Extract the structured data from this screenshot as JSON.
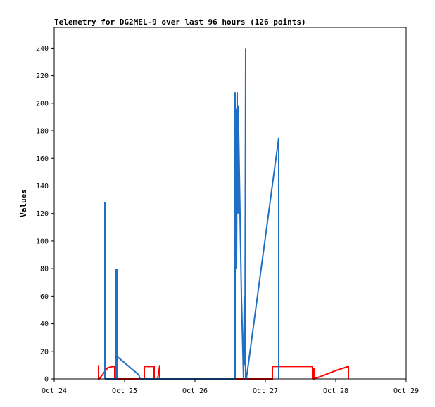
{
  "chart_data": {
    "type": "line",
    "title": "Telemetry for DG2MEL-9 over last 96 hours (126 points)",
    "xlabel": "",
    "ylabel": "Values",
    "x_unit": "days since Oct 24 00:00",
    "xlim": [
      0,
      5
    ],
    "ylim": [
      0,
      255
    ],
    "yticks": [
      0,
      20,
      40,
      60,
      80,
      100,
      120,
      140,
      160,
      180,
      200,
      220,
      240
    ],
    "xticks": [
      {
        "value": 0,
        "label": "Oct 24"
      },
      {
        "value": 1,
        "label": "Oct 25"
      },
      {
        "value": 2,
        "label": "Oct 26"
      },
      {
        "value": 3,
        "label": "Oct 27"
      },
      {
        "value": 4,
        "label": "Oct 28"
      },
      {
        "value": 5,
        "label": "Oct 29"
      }
    ],
    "grid": false,
    "legend": false,
    "series": [
      {
        "color": "#ff0000",
        "x": [
          0.63,
          0.63,
          0.64,
          0.7,
          0.76,
          0.83,
          0.86,
          0.86,
          1.0,
          1.1,
          1.2,
          1.28,
          1.28,
          1.4,
          1.42,
          1.42,
          1.47,
          1.5,
          1.5,
          1.54,
          1.6,
          2.0,
          2.5,
          3.0,
          3.1,
          3.1,
          3.3,
          3.6,
          3.67,
          3.67,
          3.69,
          3.69,
          3.8,
          4.0,
          4.18,
          4.18
        ],
        "y": [
          10,
          0,
          0,
          4,
          8,
          9,
          9,
          0,
          0,
          0,
          0,
          0,
          9,
          9,
          9,
          0,
          0,
          10,
          0,
          0,
          0,
          0,
          0,
          0,
          0,
          9,
          9,
          9,
          9,
          0,
          8,
          0,
          2,
          6,
          9,
          0
        ]
      },
      {
        "color": "#1f6fc5",
        "x": [
          0.72,
          0.72,
          0.73,
          0.88,
          0.88,
          0.89,
          0.89,
          0.9,
          1.2,
          1.22,
          1.6,
          2.0,
          2.5,
          2.57,
          2.57,
          2.58,
          2.58,
          2.59,
          2.6,
          2.6,
          2.61,
          2.61,
          2.62,
          2.66,
          2.69,
          2.7,
          2.71,
          2.72,
          2.72,
          2.73,
          3.19,
          3.19,
          3.19
        ],
        "y": [
          0,
          128,
          0,
          0,
          80,
          0,
          80,
          16,
          3,
          0,
          0,
          0,
          0,
          0,
          208,
          80,
          196,
          80,
          208,
          160,
          198,
          120,
          180,
          60,
          0,
          60,
          10,
          240,
          0,
          0,
          175,
          0,
          0
        ]
      }
    ]
  }
}
